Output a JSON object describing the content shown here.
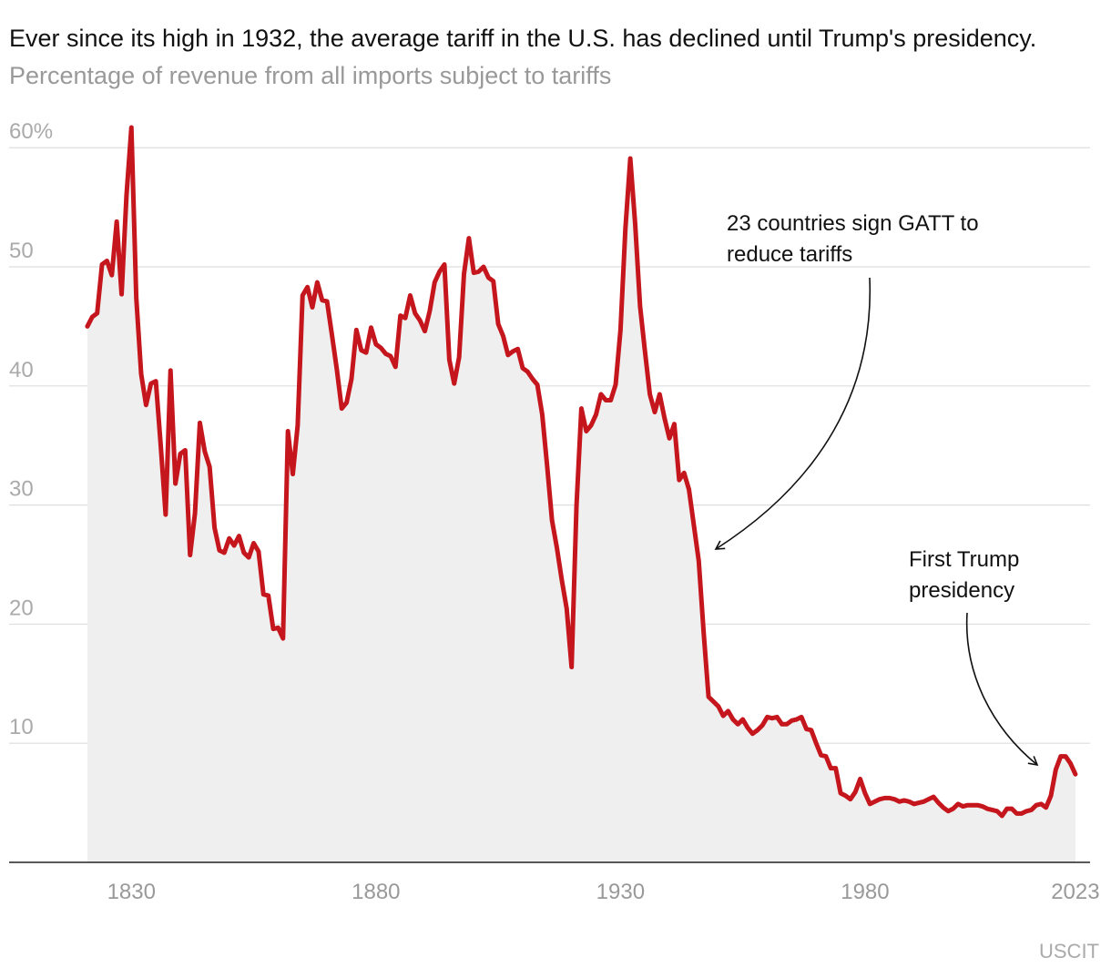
{
  "chart_data": {
    "type": "line",
    "title": "Ever since its high in 1932, the average tariff in the U.S. has declined until Trump's presidency.",
    "subtitle": "Percentage of revenue from all imports subject to tariffs",
    "source": "USCIT",
    "color": "#c4161c",
    "area_color": "#efefef",
    "grid": true,
    "xlim": [
      1805,
      2026
    ],
    "ylim": [
      0,
      63
    ],
    "xticks": [
      1830,
      1880,
      1930,
      1980,
      2023
    ],
    "yticks": [
      10,
      20,
      30,
      40,
      50,
      {
        "value": 60,
        "label": "60%"
      }
    ],
    "annotations": [
      {
        "lines": [
          "23 countries sign GATT to",
          "reduce tariffs"
        ]
      },
      {
        "lines": [
          "First Trump",
          "presidency"
        ]
      }
    ],
    "x": [
      1821,
      1822,
      1823,
      1824,
      1825,
      1826,
      1827,
      1828,
      1829,
      1830,
      1831,
      1832,
      1833,
      1834,
      1835,
      1836,
      1837,
      1838,
      1839,
      1840,
      1841,
      1842,
      1843,
      1844,
      1845,
      1846,
      1847,
      1848,
      1849,
      1850,
      1851,
      1852,
      1853,
      1854,
      1855,
      1856,
      1857,
      1858,
      1859,
      1860,
      1861,
      1862,
      1863,
      1864,
      1865,
      1866,
      1867,
      1868,
      1869,
      1870,
      1871,
      1872,
      1873,
      1874,
      1875,
      1876,
      1877,
      1878,
      1879,
      1880,
      1881,
      1882,
      1883,
      1884,
      1885,
      1886,
      1887,
      1888,
      1889,
      1890,
      1891,
      1892,
      1893,
      1894,
      1895,
      1896,
      1897,
      1898,
      1899,
      1900,
      1901,
      1902,
      1903,
      1904,
      1905,
      1906,
      1907,
      1908,
      1909,
      1910,
      1911,
      1912,
      1913,
      1914,
      1915,
      1916,
      1917,
      1918,
      1919,
      1920,
      1921,
      1922,
      1923,
      1924,
      1925,
      1926,
      1927,
      1928,
      1929,
      1930,
      1931,
      1932,
      1933,
      1934,
      1935,
      1936,
      1937,
      1938,
      1939,
      1940,
      1941,
      1942,
      1943,
      1944,
      1945,
      1946,
      1947,
      1948,
      1949,
      1950,
      1951,
      1952,
      1953,
      1954,
      1955,
      1956,
      1957,
      1958,
      1959,
      1960,
      1961,
      1962,
      1963,
      1964,
      1965,
      1966,
      1967,
      1968,
      1969,
      1970,
      1971,
      1972,
      1973,
      1974,
      1975,
      1976,
      1977,
      1978,
      1979,
      1980,
      1981,
      1982,
      1983,
      1984,
      1985,
      1986,
      1987,
      1988,
      1989,
      1990,
      1991,
      1992,
      1993,
      1994,
      1995,
      1996,
      1997,
      1998,
      1999,
      2000,
      2001,
      2002,
      2003,
      2004,
      2005,
      2006,
      2007,
      2008,
      2009,
      2010,
      2011,
      2012,
      2013,
      2014,
      2015,
      2016,
      2017,
      2018,
      2019,
      2020,
      2021,
      2022,
      2023
    ],
    "values": [
      45,
      45.8,
      46.1,
      50.2,
      50.5,
      49.3,
      53.8,
      47.7,
      56,
      61.7,
      47.4,
      41,
      38.4,
      40.2,
      40.4,
      35,
      29.2,
      41.3,
      31.8,
      34.3,
      34.6,
      25.8,
      29.3,
      36.9,
      34.5,
      33.2,
      28.1,
      26.2,
      26.0,
      27.2,
      26.6,
      27.4,
      26.0,
      25.6,
      26.8,
      26.1,
      22.5,
      22.4,
      19.6,
      19.7,
      18.8,
      36.2,
      32.6,
      36.7,
      47.6,
      48.3,
      46.6,
      48.7,
      47.2,
      47.1,
      44.3,
      41.4,
      38.1,
      38.6,
      40.6,
      44.7,
      43.0,
      42.8,
      44.9,
      43.5,
      43.2,
      42.7,
      42.5,
      41.6,
      45.9,
      45.7,
      47.6,
      46.1,
      45.5,
      44.6,
      46.3,
      48.7,
      49.6,
      50.2,
      42.2,
      40.2,
      42.4,
      49.4,
      52.4,
      49.5,
      49.6,
      50.0,
      49.1,
      48.8,
      45.2,
      44.2,
      42.6,
      42.9,
      43.1,
      41.5,
      41.2,
      40.6,
      40.1,
      37.6,
      33.3,
      28.7,
      26.4,
      23.7,
      21.3,
      16.4,
      29.9,
      38.1,
      36.2,
      36.7,
      37.6,
      39.3,
      38.8,
      38.8,
      40.1,
      44.7,
      53.2,
      59.1,
      53.6,
      46.7,
      42.9,
      39.3,
      37.8,
      39.3,
      37.3,
      35.6,
      36.8,
      32.1,
      32.7,
      31.3,
      28.3,
      25.3,
      19.3,
      13.9,
      13.5,
      13.1,
      12.3,
      12.7,
      12.0,
      11.6,
      12.0,
      11.3,
      10.8,
      11.1,
      11.5,
      12.2,
      12.1,
      12.2,
      11.6,
      11.6,
      11.9,
      12.0,
      12.2,
      11.2,
      11.1,
      10.0,
      9.0,
      8.9,
      7.9,
      7.9,
      5.8,
      5.6,
      5.3,
      5.9,
      7.0,
      5.8,
      4.9,
      5.1,
      5.3,
      5.4,
      5.4,
      5.3,
      5.1,
      5.2,
      5.1,
      4.9,
      5.0,
      5.1,
      5.3,
      5.5,
      5.0,
      4.6,
      4.3,
      4.5,
      4.9,
      4.7,
      4.8,
      4.8,
      4.8,
      4.7,
      4.5,
      4.4,
      4.3,
      3.9,
      4.5,
      4.5,
      4.1,
      4.1,
      4.3,
      4.4,
      4.8,
      4.9,
      4.6,
      5.6,
      7.8,
      8.9,
      8.9,
      8.3,
      7.4
    ]
  }
}
